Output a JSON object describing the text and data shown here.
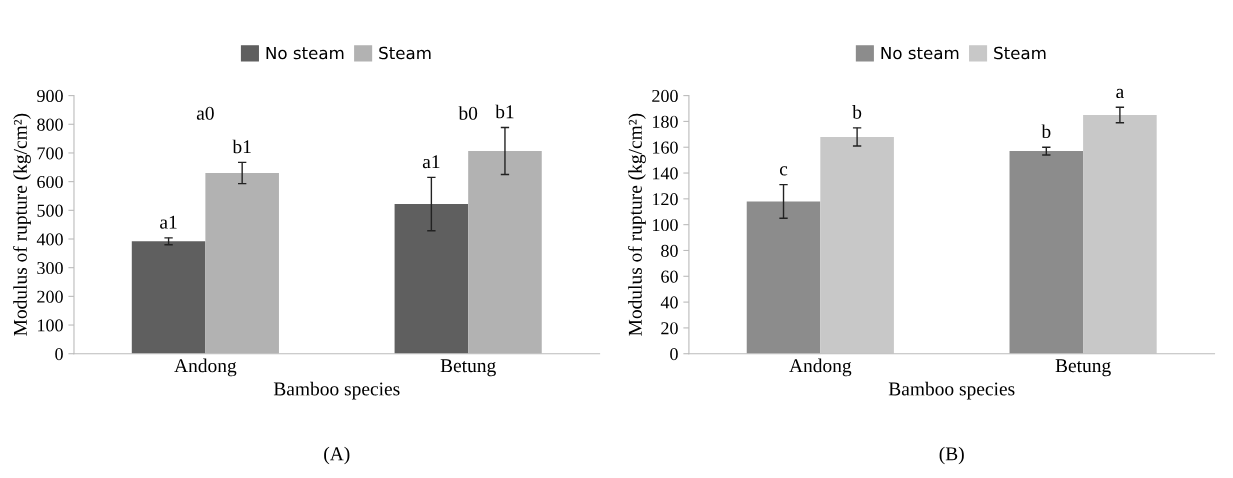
{
  "chart_data": [
    {
      "type": "bar",
      "categories": [
        "Andong",
        "Betung"
      ],
      "xlabel": "Bamboo species",
      "ylabel": "Modulus of rupture (kg/cm²)",
      "series": [
        {
          "name": "No steam",
          "color": "#5f5f5f",
          "values": [
            392,
            522
          ],
          "errors": [
            12,
            93
          ],
          "value_labels": [
            "a1",
            "a1"
          ]
        },
        {
          "name": "Steam",
          "color": "#b2b2b2",
          "values": [
            630,
            707
          ],
          "errors": [
            37,
            82
          ],
          "value_labels": [
            "b1",
            "b1"
          ]
        }
      ],
      "ylim": [
        0,
        900
      ],
      "yticks": [
        0,
        100,
        200,
        300,
        400,
        500,
        600,
        700,
        800,
        900
      ],
      "legend": "top",
      "grid": false,
      "annotations": [
        "a0",
        "b0",
        "(A)"
      ]
    },
    {
      "type": "bar",
      "categories": [
        "Andong",
        "Betung"
      ],
      "xlabel": "Bamboo species",
      "ylabel": "Modulus of rupture (kg/cm²)",
      "series": [
        {
          "name": "No steam",
          "color": "#8c8c8c",
          "values": [
            118,
            157
          ],
          "errors": [
            13,
            3
          ],
          "value_labels": [
            "c",
            "b"
          ]
        },
        {
          "name": "Steam",
          "color": "#c8c8c8",
          "values": [
            168,
            185
          ],
          "errors": [
            7,
            6
          ],
          "value_labels": [
            "b",
            "a"
          ]
        }
      ],
      "ylim": [
        0,
        200
      ],
      "yticks": [
        0,
        20,
        40,
        60,
        80,
        100,
        120,
        140,
        160,
        180,
        200
      ],
      "legend": "top",
      "grid": false,
      "annotations": [
        "(B)"
      ]
    }
  ]
}
